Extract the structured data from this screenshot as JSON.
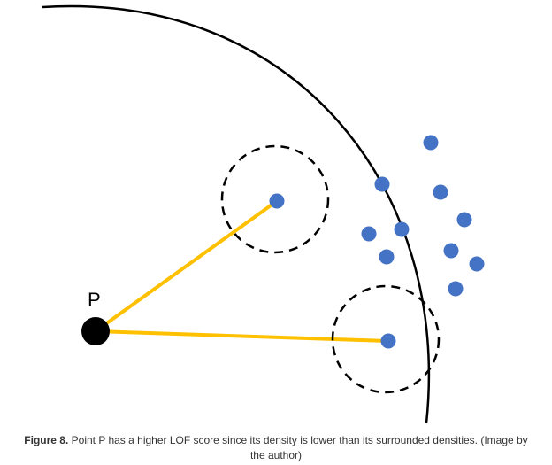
{
  "diagram": {
    "point_label": "P",
    "colors": {
      "point_p": "#000000",
      "neighbor_points": "#4472c4",
      "connector_lines": "#ffc000",
      "boundary_arc": "#000000",
      "dashed_circles": "#000000"
    },
    "icons": {
      "point_p": "filled-circle-black",
      "neighbor_points": "filled-circle-blue",
      "neighborhood": "dashed-circle"
    }
  },
  "caption": {
    "label": "Figure 8.",
    "text": " Point P has a higher LOF score since its density is lower than its surrounded densities. (Image by the author)"
  }
}
